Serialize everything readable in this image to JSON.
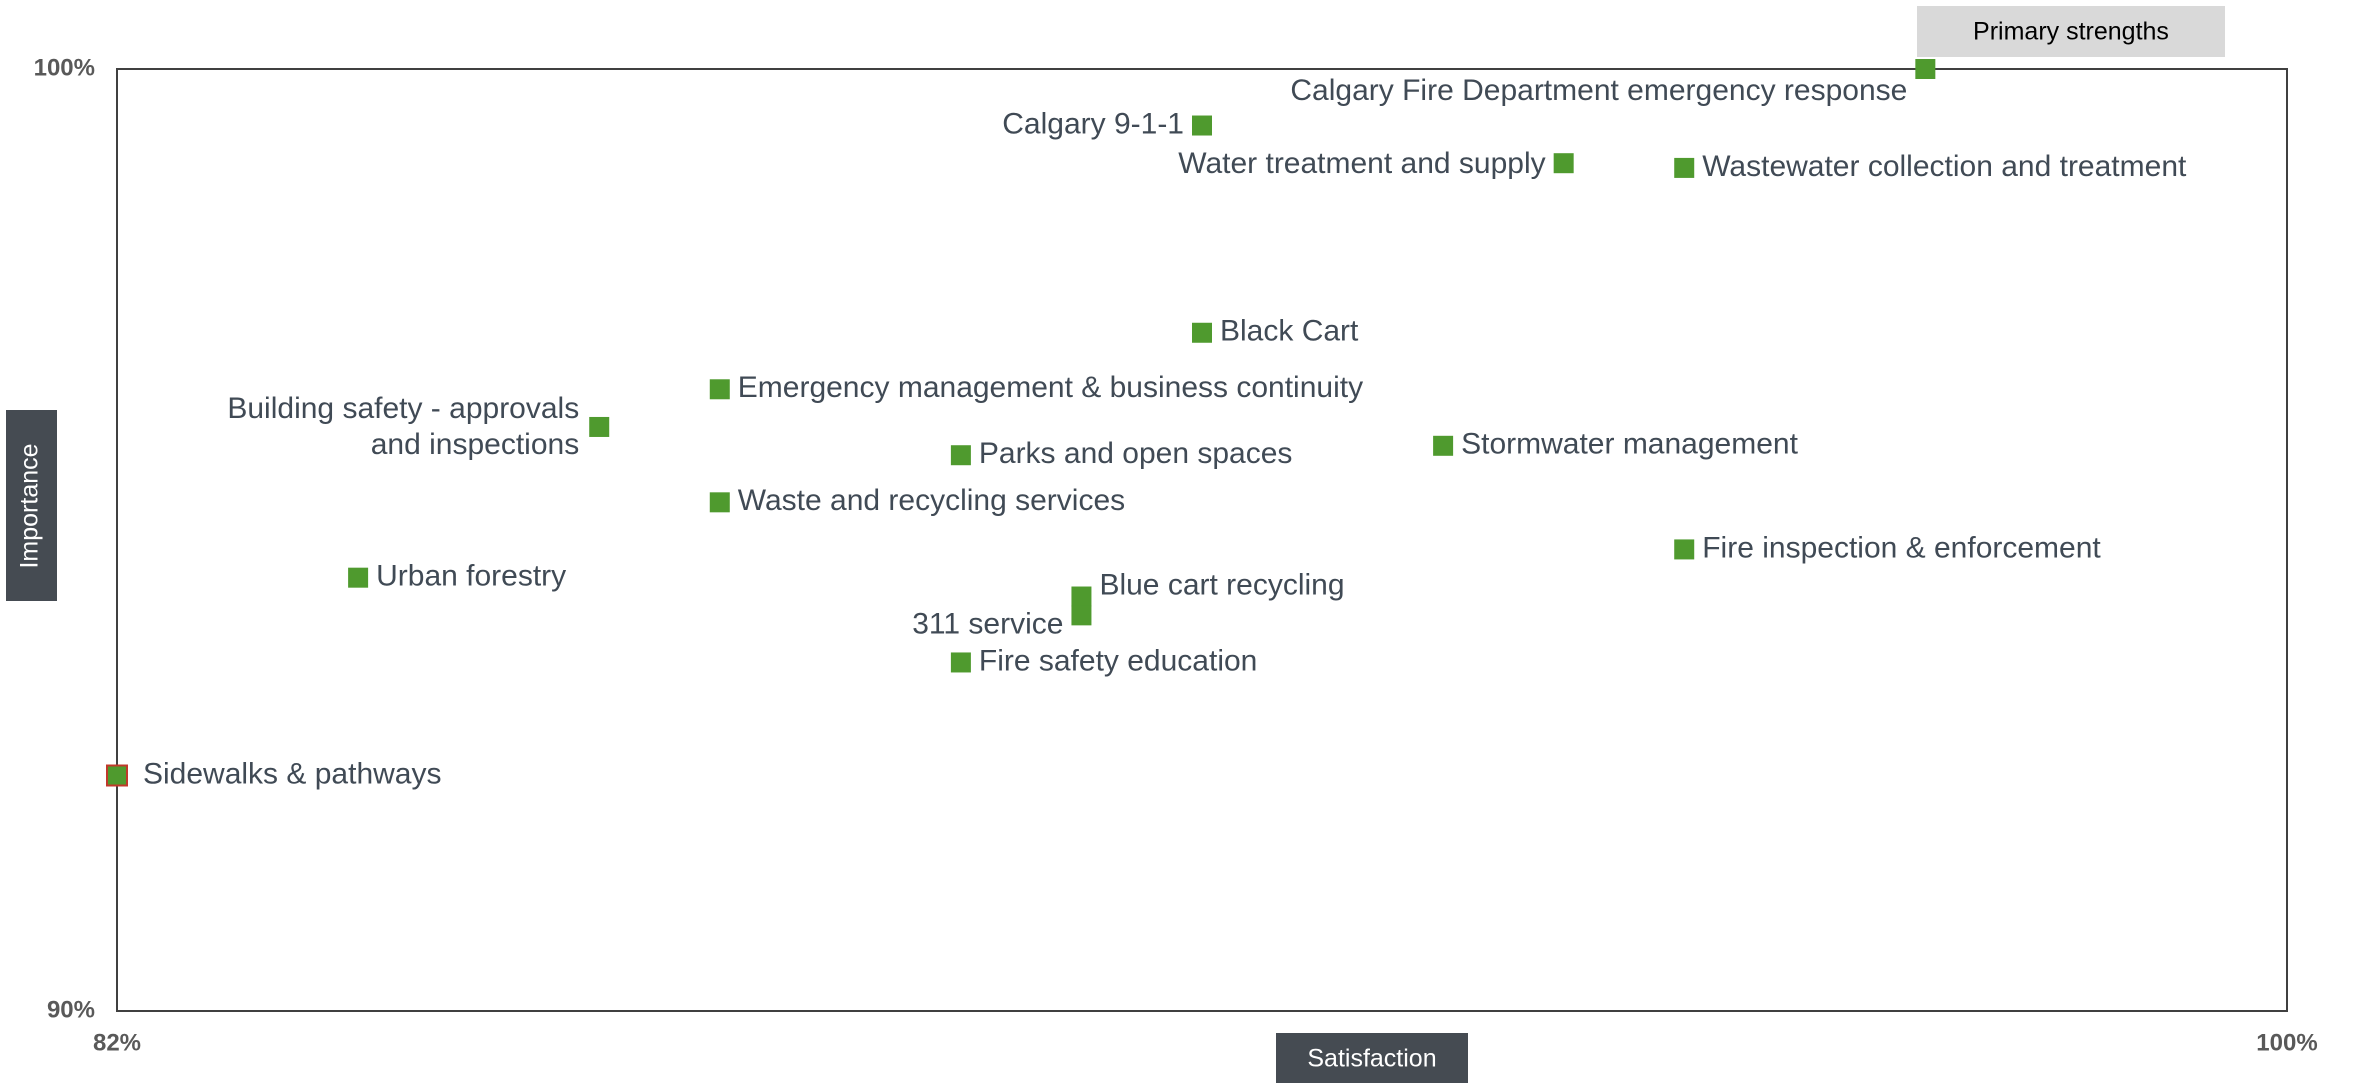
{
  "chart_data": {
    "type": "scatter",
    "x_label": "Satisfaction",
    "y_label": "Importance",
    "annotation": "Primary strengths",
    "xlim": [
      82,
      100
    ],
    "xticks": [
      {
        "value": 82,
        "label": "82%"
      },
      {
        "value": 100,
        "label": "100%"
      }
    ],
    "ylim": [
      90,
      100
    ],
    "yticks": [
      {
        "value": 90,
        "label": "90%"
      },
      {
        "value": 100,
        "label": "100%"
      }
    ],
    "grid": false,
    "color": "#4f9a2e",
    "highlight_color": "#c0392b",
    "points": [
      {
        "label": "Calgary Fire Department emergency response",
        "x": 97,
        "y": 100
      },
      {
        "label": "Calgary 9-1-1",
        "x": 91,
        "y": 99.4
      },
      {
        "label": "Water treatment and supply",
        "x": 94,
        "y": 99.0
      },
      {
        "label": "Wastewater collection and treatment",
        "x": 95,
        "y": 98.95
      },
      {
        "label": "Black Cart",
        "x": 91,
        "y": 97.2
      },
      {
        "label": "Emergency management & business continuity",
        "x": 87,
        "y": 96.6
      },
      {
        "label": "Building safety - approvals and inspections",
        "x": 86,
        "y": 96.2
      },
      {
        "label": "Parks and open spaces",
        "x": 89,
        "y": 95.9
      },
      {
        "label": "Stormwater management",
        "x": 93,
        "y": 96.0
      },
      {
        "label": "Waste and recycling services",
        "x": 87,
        "y": 95.4
      },
      {
        "label": "Urban forestry",
        "x": 84,
        "y": 94.6
      },
      {
        "label": "Fire inspection & enforcement",
        "x": 95,
        "y": 94.9
      },
      {
        "label": "Blue cart recycling",
        "x": 90,
        "y": 94.4
      },
      {
        "label": "311 service",
        "x": 90,
        "y": 94.2
      },
      {
        "label": "Fire safety education",
        "x": 89,
        "y": 93.7
      },
      {
        "label": "Sidewalks & pathways",
        "x": 82,
        "y": 92.5,
        "highlight": true
      }
    ]
  }
}
